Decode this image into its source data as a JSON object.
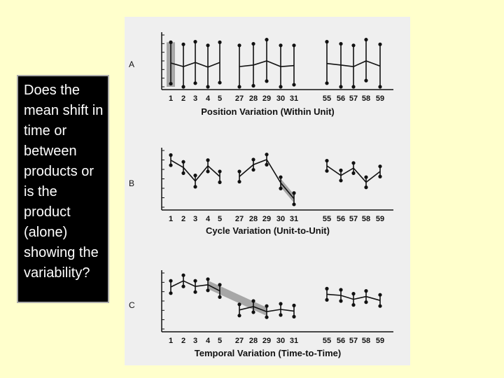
{
  "question": {
    "text": "Does the mean shift in time or between products or is the product (alone) showing the variability?"
  },
  "colors": {
    "slide_background": "#ffffcc",
    "question_box": "#000000",
    "question_text": "#ffffff",
    "figure_paper": "#efefef",
    "shaded_trend_band": "#9a9a9a",
    "ink": "#111111"
  },
  "chart_data": [
    {
      "type": "line",
      "panel_letter": "A",
      "xlabel": "Position Variation (Within Unit)",
      "categories": [
        "1",
        "2",
        "3",
        "4",
        "5",
        "27",
        "28",
        "29",
        "30",
        "31",
        "55",
        "56",
        "57",
        "58",
        "59"
      ],
      "groups": [
        [
          0,
          4
        ],
        [
          5,
          9
        ],
        [
          10,
          14
        ]
      ],
      "ylim": [
        0,
        10
      ],
      "grid": false,
      "series": [
        {
          "mean": [
            4.6,
            3.9,
            4.7,
            3.8,
            4.7,
            3.9,
            4.2,
            5.0,
            3.9,
            4.1,
            4.5,
            4.2,
            3.9,
            5.0,
            4.0
          ],
          "high": [
            8.6,
            8.2,
            8.7,
            8.0,
            8.6,
            8.0,
            8.3,
            9.1,
            8.0,
            8.0,
            8.7,
            8.3,
            8.0,
            9.1,
            8.2
          ],
          "low": [
            0.6,
            0.0,
            0.7,
            0.0,
            0.8,
            0.0,
            0.2,
            1.1,
            0.0,
            0.4,
            0.7,
            0.0,
            0.0,
            1.2,
            0.0
          ]
        }
      ],
      "shaded_band": {
        "from_index": 0,
        "to_index": 0,
        "y_range": [
          0,
          8.6
        ]
      }
    },
    {
      "type": "line",
      "panel_letter": "B",
      "xlabel": "Cycle Variation (Unit-to-Unit)",
      "categories": [
        "1",
        "2",
        "3",
        "4",
        "5",
        "27",
        "28",
        "29",
        "30",
        "31",
        "55",
        "56",
        "57",
        "58",
        "59"
      ],
      "groups": [
        [
          0,
          4
        ],
        [
          5,
          9
        ],
        [
          10,
          14
        ]
      ],
      "ylim": [
        0,
        10
      ],
      "grid": false,
      "series": [
        {
          "mean": [
            8.3,
            7.0,
            4.6,
            7.3,
            5.4,
            5.4,
            7.5,
            8.4,
            4.3,
            1.5,
            7.3,
            5.6,
            6.9,
            4.4,
            6.3
          ],
          "high": [
            9.2,
            8.0,
            5.6,
            8.3,
            6.3,
            6.3,
            8.4,
            9.3,
            5.3,
            2.5,
            8.2,
            6.5,
            7.8,
            5.3,
            7.2
          ],
          "low": [
            7.4,
            6.0,
            3.6,
            6.3,
            4.4,
            4.5,
            6.6,
            7.5,
            3.3,
            0.5,
            6.4,
            4.7,
            6.0,
            3.5,
            5.4
          ]
        }
      ],
      "shaded_band": {
        "from_index": 8,
        "to_index": 9,
        "y_range": [
          0.5,
          5.3
        ]
      }
    },
    {
      "type": "line",
      "panel_letter": "C",
      "xlabel": "Temporal Variation (Time-to-Time)",
      "categories": [
        "1",
        "2",
        "3",
        "4",
        "5",
        "27",
        "28",
        "29",
        "30",
        "31",
        "55",
        "56",
        "57",
        "58",
        "59"
      ],
      "groups": [
        [
          0,
          4
        ],
        [
          5,
          9
        ],
        [
          10,
          14
        ]
      ],
      "ylim": [
        0,
        10
      ],
      "grid": false,
      "series": [
        {
          "mean": [
            7.5,
            8.6,
            7.6,
            7.9,
            6.8,
            3.4,
            4.0,
            3.1,
            3.5,
            3.2,
            6.2,
            6.0,
            5.3,
            5.8,
            5.1
          ],
          "high": [
            8.6,
            9.6,
            8.6,
            8.9,
            7.9,
            4.4,
            5.0,
            4.1,
            4.5,
            4.2,
            7.2,
            7.0,
            6.3,
            6.8,
            6.1
          ],
          "low": [
            6.4,
            7.6,
            6.6,
            6.9,
            5.7,
            2.4,
            3.0,
            2.1,
            2.5,
            2.2,
            5.2,
            5.0,
            4.3,
            4.8,
            4.1
          ]
        }
      ],
      "shaded_band": {
        "from_index": 3,
        "to_index": 7,
        "y_range": [
          3.2,
          8.6
        ]
      }
    }
  ]
}
